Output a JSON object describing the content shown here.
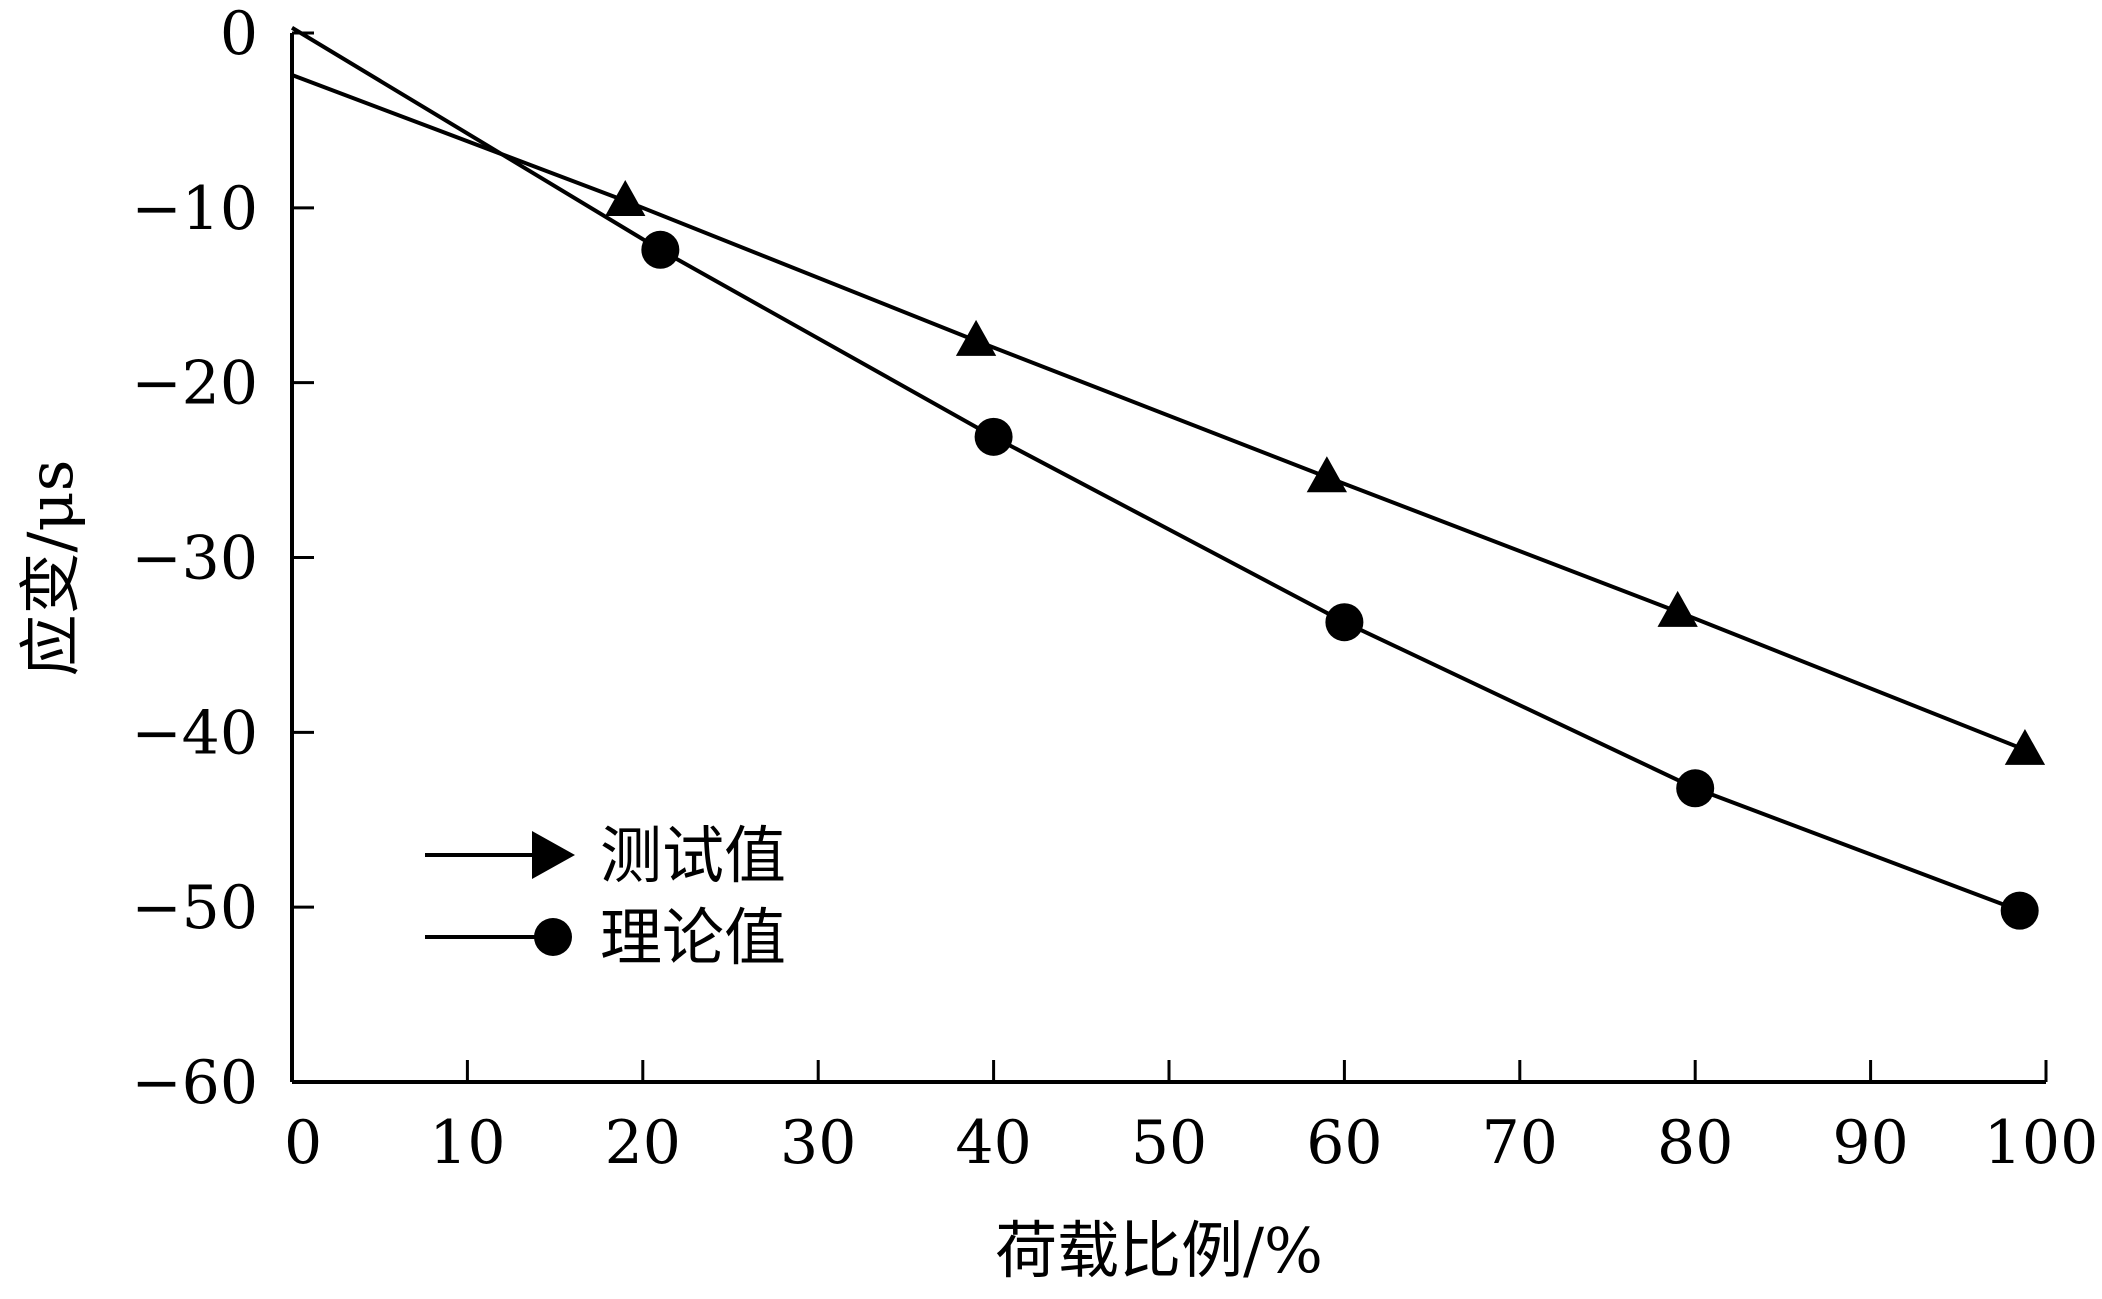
{
  "chart_data": {
    "type": "line",
    "title": "",
    "xlabel": "荷载比例/%",
    "ylabel": "应变/μs",
    "xlim": [
      0,
      100
    ],
    "ylim": [
      -60,
      0
    ],
    "x_ticks": [
      0,
      10,
      20,
      30,
      40,
      50,
      60,
      70,
      80,
      90,
      100
    ],
    "x_tick_labels": [
      "0",
      "10",
      "20",
      "30",
      "40",
      "50",
      "60",
      "70",
      "80",
      "90",
      "100"
    ],
    "y_ticks": [
      0,
      -10,
      -20,
      -30,
      -40,
      -50,
      -60
    ],
    "y_tick_labels": [
      "0",
      "−10",
      "−20",
      "−30",
      "−40",
      "−50",
      "−60"
    ],
    "grid": false,
    "legend_position": "bottom-left",
    "series": [
      {
        "name": "测试值",
        "marker": "triangle",
        "color": "#000000",
        "points": [
          {
            "x": 0,
            "y": -2.4
          },
          {
            "x": 19,
            "y": -9.6
          },
          {
            "x": 39,
            "y": -17.6
          },
          {
            "x": 59,
            "y": -25.4
          },
          {
            "x": 79,
            "y": -33.1
          },
          {
            "x": 98.8,
            "y": -41.0
          }
        ]
      },
      {
        "name": "理论值",
        "marker": "circle",
        "color": "#000000",
        "points": [
          {
            "x": 0,
            "y": 0.3
          },
          {
            "x": 21,
            "y": -12.4
          },
          {
            "x": 40,
            "y": -23.1
          },
          {
            "x": 60,
            "y": -33.7
          },
          {
            "x": 80,
            "y": -43.2
          },
          {
            "x": 98.5,
            "y": -50.2
          }
        ]
      }
    ]
  }
}
